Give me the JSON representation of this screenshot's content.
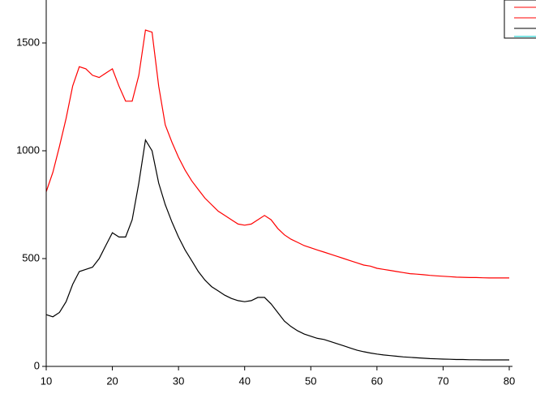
{
  "chart_data": {
    "type": "line",
    "x": [
      10,
      11,
      12,
      13,
      14,
      15,
      16,
      17,
      18,
      19,
      20,
      21,
      22,
      23,
      24,
      25,
      26,
      27,
      28,
      29,
      30,
      31,
      32,
      33,
      34,
      35,
      36,
      37,
      38,
      39,
      40,
      41,
      42,
      43,
      44,
      45,
      46,
      47,
      48,
      49,
      50,
      51,
      52,
      53,
      54,
      55,
      56,
      57,
      58,
      59,
      60,
      61,
      62,
      63,
      64,
      65,
      66,
      67,
      68,
      69,
      70,
      71,
      72,
      73,
      74,
      75,
      76,
      77,
      78,
      79,
      80
    ],
    "series": [
      {
        "color": "#ff0000",
        "values": [
          810,
          900,
          1020,
          1150,
          1300,
          1390,
          1380,
          1350,
          1340,
          1360,
          1380,
          1300,
          1230,
          1230,
          1350,
          1560,
          1550,
          1300,
          1120,
          1040,
          970,
          910,
          860,
          820,
          780,
          750,
          720,
          700,
          680,
          660,
          655,
          660,
          680,
          700,
          680,
          640,
          610,
          590,
          575,
          560,
          550,
          540,
          530,
          520,
          510,
          500,
          490,
          480,
          470,
          465,
          455,
          450,
          445,
          440,
          435,
          430,
          428,
          425,
          422,
          420,
          418,
          416,
          414,
          413,
          412,
          412,
          411,
          410,
          410,
          410,
          410
        ]
      },
      {
        "color": "#000000",
        "values": [
          240,
          230,
          250,
          300,
          380,
          440,
          450,
          460,
          500,
          560,
          620,
          600,
          600,
          680,
          850,
          1050,
          1000,
          850,
          750,
          670,
          600,
          540,
          490,
          440,
          400,
          370,
          350,
          330,
          315,
          305,
          300,
          305,
          320,
          320,
          290,
          250,
          210,
          185,
          165,
          150,
          140,
          130,
          125,
          115,
          105,
          95,
          85,
          75,
          68,
          62,
          57,
          53,
          50,
          47,
          44,
          42,
          40,
          38,
          36,
          35,
          34,
          33,
          32,
          32,
          31,
          31,
          30,
          30,
          30,
          30,
          30
        ]
      }
    ],
    "xlim": [
      10,
      80
    ],
    "xticks": [
      10,
      20,
      30,
      40,
      50,
      60,
      70,
      80
    ],
    "ylim": [
      0,
      1600
    ],
    "yticks": [
      0,
      500,
      1000,
      1500
    ]
  }
}
